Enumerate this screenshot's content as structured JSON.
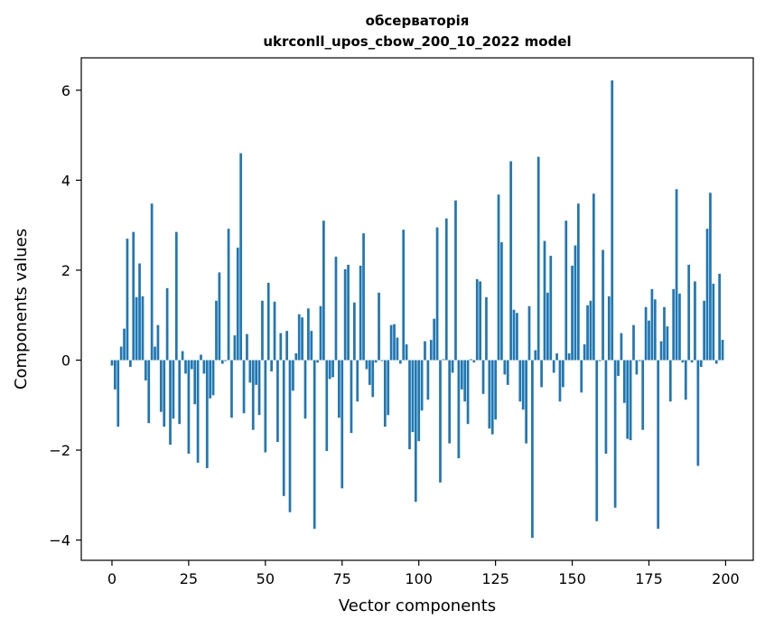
{
  "chart_data": {
    "type": "bar",
    "title_line1": "обсерваторія",
    "title_line2": "ukrconll_upos_cbow_200_10_2022 model",
    "xlabel": "Vector components",
    "ylabel": "Components values",
    "xlim": [
      -10,
      209
    ],
    "ylim": [
      -4.45,
      6.72
    ],
    "x_ticks": [
      0,
      25,
      50,
      75,
      100,
      125,
      150,
      175,
      200
    ],
    "y_ticks": [
      -4,
      -2,
      0,
      2,
      4,
      6
    ],
    "y_tick_labels": [
      "−4",
      "−2",
      "0",
      "2",
      "4",
      "6"
    ],
    "bar_color": "#1f77b4",
    "grid": false,
    "values": [
      -0.12,
      -0.65,
      -1.48,
      0.3,
      0.7,
      2.7,
      -0.15,
      2.85,
      1.4,
      2.15,
      1.42,
      -0.45,
      -1.4,
      3.48,
      0.3,
      0.78,
      -1.15,
      -1.48,
      1.6,
      -1.88,
      -1.3,
      2.85,
      -1.42,
      0.2,
      -0.3,
      -2.08,
      -0.2,
      -0.98,
      -2.28,
      0.12,
      -0.3,
      -2.4,
      -0.85,
      -0.78,
      1.32,
      1.95,
      -0.08,
      -0.02,
      2.92,
      -1.28,
      0.55,
      2.5,
      4.6,
      -1.18,
      0.58,
      -0.5,
      -1.55,
      -0.55,
      -1.22,
      1.32,
      -2.05,
      1.72,
      -0.25,
      1.3,
      -1.82,
      0.6,
      -3.02,
      0.65,
      -3.38,
      -0.68,
      0.15,
      1.02,
      0.95,
      -1.3,
      1.15,
      0.65,
      -3.75,
      -0.05,
      1.2,
      3.1,
      -2.02,
      -0.42,
      -0.38,
      2.3,
      -1.28,
      -2.85,
      2.02,
      2.12,
      -1.62,
      1.28,
      -0.92,
      2.1,
      2.82,
      -0.2,
      -0.55,
      -0.82,
      -0.05,
      1.5,
      -0.02,
      -1.48,
      -1.22,
      0.78,
      0.8,
      0.5,
      -0.08,
      2.9,
      0.35,
      -1.98,
      -1.6,
      -3.15,
      -1.8,
      -1.12,
      0.42,
      -0.88,
      0.45,
      0.92,
      2.95,
      -2.72,
      0.02,
      3.15,
      -1.85,
      -0.28,
      3.55,
      -2.18,
      -0.65,
      -0.92,
      -1.42,
      0.02,
      -0.05,
      1.8,
      1.75,
      -0.75,
      1.4,
      -1.52,
      -1.65,
      -1.32,
      3.68,
      2.62,
      -0.32,
      -0.55,
      4.42,
      1.12,
      1.05,
      -0.92,
      -1.1,
      -1.85,
      1.2,
      -3.95,
      0.22,
      4.52,
      -0.6,
      2.65,
      1.5,
      2.32,
      -0.28,
      0.15,
      -0.92,
      -0.6,
      3.1,
      0.15,
      2.1,
      2.55,
      3.48,
      -0.72,
      0.35,
      1.22,
      1.32,
      3.7,
      -3.58,
      -0.02,
      2.45,
      -2.08,
      1.42,
      6.22,
      -3.28,
      -0.35,
      0.6,
      -0.95,
      -1.75,
      -1.78,
      0.78,
      -0.32,
      -0.02,
      -1.55,
      1.18,
      0.88,
      1.58,
      1.35,
      -3.75,
      0.42,
      1.18,
      0.75,
      -0.92,
      1.58,
      3.8,
      1.48,
      -0.05,
      -0.88,
      2.12,
      -0.05,
      1.75,
      -2.35,
      -0.15,
      1.32,
      2.92,
      3.72,
      1.7,
      -0.08,
      1.92,
      0.45
    ]
  }
}
